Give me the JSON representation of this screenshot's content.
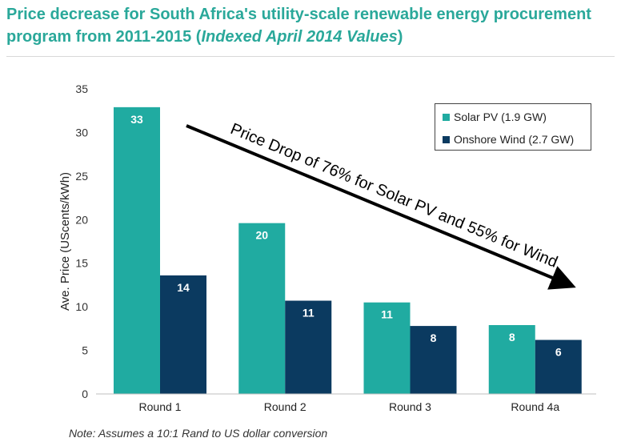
{
  "title_main": "Price decrease for South Africa's utility-scale renewable energy procurement program from 2011-2015 (",
  "title_italic": "Indexed April 2014 Values",
  "title_end": ")",
  "note": "Note: Assumes a 10:1 Rand to US dollar conversion",
  "annotation": "Price Drop of 76% for Solar PV and 55% for Wind",
  "colors": {
    "solar": "#20aba1",
    "wind": "#0b3a60",
    "title": "#2aa89a"
  },
  "chart_data": {
    "type": "bar",
    "categories": [
      "Round 1",
      "Round 2",
      "Round 3",
      "Round 4a"
    ],
    "series": [
      {
        "name": "Solar PV (1.9 GW)",
        "values": [
          32.9,
          19.6,
          10.5,
          7.9
        ],
        "labels": [
          "33",
          "20",
          "11",
          "8"
        ]
      },
      {
        "name": "Onshore Wind (2.7 GW)",
        "values": [
          13.6,
          10.7,
          7.8,
          6.2
        ],
        "labels": [
          "14",
          "11",
          "8",
          "6"
        ]
      }
    ],
    "ylabel": "Ave. Price (UScents/kWh)",
    "ylim": [
      0,
      35
    ],
    "yticks": [
      0,
      5,
      10,
      15,
      20,
      25,
      30,
      35
    ],
    "grid": false,
    "legend_position": "top-right"
  }
}
